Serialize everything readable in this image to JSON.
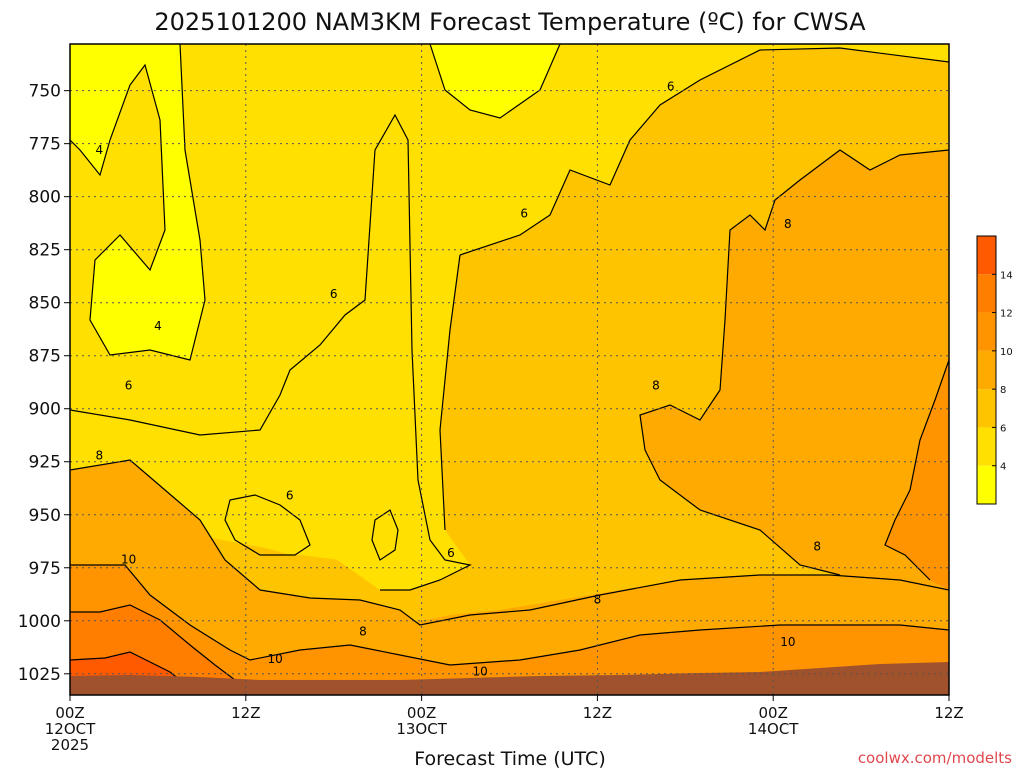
{
  "chart_data": {
    "type": "heatmap",
    "title": "2025101200 NAM3KM Forecast Temperature (ºC) for CWSA",
    "xlabel": "Forecast Time (UTC)",
    "ylabel": "",
    "y_axis": {
      "inverted": true,
      "range": [
        1035,
        728
      ],
      "units": "hPa",
      "ticks": [
        {
          "value": 750,
          "label": "750"
        },
        {
          "value": 775,
          "label": "775"
        },
        {
          "value": 800,
          "label": "800"
        },
        {
          "value": 825,
          "label": "825"
        },
        {
          "value": 850,
          "label": "850"
        },
        {
          "value": 875,
          "label": "875"
        },
        {
          "value": 900,
          "label": "900"
        },
        {
          "value": 925,
          "label": "925"
        },
        {
          "value": 950,
          "label": "950"
        },
        {
          "value": 975,
          "label": "975"
        },
        {
          "value": 1000,
          "label": "1000"
        },
        {
          "value": 1025,
          "label": "1025"
        }
      ]
    },
    "x_axis": {
      "range_hours": [
        0,
        60
      ],
      "ticks": [
        {
          "hour": 0,
          "lines": [
            "00Z",
            "12OCT",
            "2025"
          ]
        },
        {
          "hour": 12,
          "lines": [
            "12Z"
          ]
        },
        {
          "hour": 24,
          "lines": [
            "00Z",
            "13OCT"
          ]
        },
        {
          "hour": 36,
          "lines": [
            "12Z"
          ]
        },
        {
          "hour": 48,
          "lines": [
            "00Z",
            "14OCT"
          ]
        },
        {
          "hour": 60,
          "lines": [
            "12Z"
          ]
        }
      ]
    },
    "grid": true,
    "colorbar": {
      "placement": "right",
      "levels": [
        2,
        4,
        6,
        8,
        10,
        12,
        14,
        16
      ],
      "colors": [
        "#ffff00",
        "#ffe000",
        "#ffc400",
        "#ffaa00",
        "#ff9400",
        "#ff7e00",
        "#ff5a00"
      ],
      "tick_labels": [
        "4",
        "6",
        "8",
        "10",
        "12",
        "14"
      ]
    },
    "ground_color": "#a0522d",
    "contour_labels": [
      {
        "value": "4",
        "hour": 2.0,
        "pres": 778
      },
      {
        "value": "4",
        "hour": 6.0,
        "pres": 861
      },
      {
        "value": "6",
        "hour": 4.0,
        "pres": 889
      },
      {
        "value": "6",
        "hour": 18.0,
        "pres": 846
      },
      {
        "value": "6",
        "hour": 15.0,
        "pres": 941
      },
      {
        "value": "6",
        "hour": 26.0,
        "pres": 968
      },
      {
        "value": "6",
        "hour": 31.0,
        "pres": 808
      },
      {
        "value": "6",
        "hour": 41.0,
        "pres": 748
      },
      {
        "value": "8",
        "hour": 2.0,
        "pres": 922
      },
      {
        "value": "8",
        "hour": 40.0,
        "pres": 889
      },
      {
        "value": "8",
        "hour": 49.0,
        "pres": 813
      },
      {
        "value": "8",
        "hour": 51.0,
        "pres": 965
      },
      {
        "value": "8",
        "hour": 36.0,
        "pres": 990
      },
      {
        "value": "8",
        "hour": 20.0,
        "pres": 1005
      },
      {
        "value": "10",
        "hour": 4.0,
        "pres": 971
      },
      {
        "value": "10",
        "hour": 14.0,
        "pres": 1018
      },
      {
        "value": "10",
        "hour": 28.0,
        "pres": 1024
      },
      {
        "value": "10",
        "hour": 49.0,
        "pres": 1010
      }
    ],
    "credit": "coolwx.com/modelts"
  }
}
